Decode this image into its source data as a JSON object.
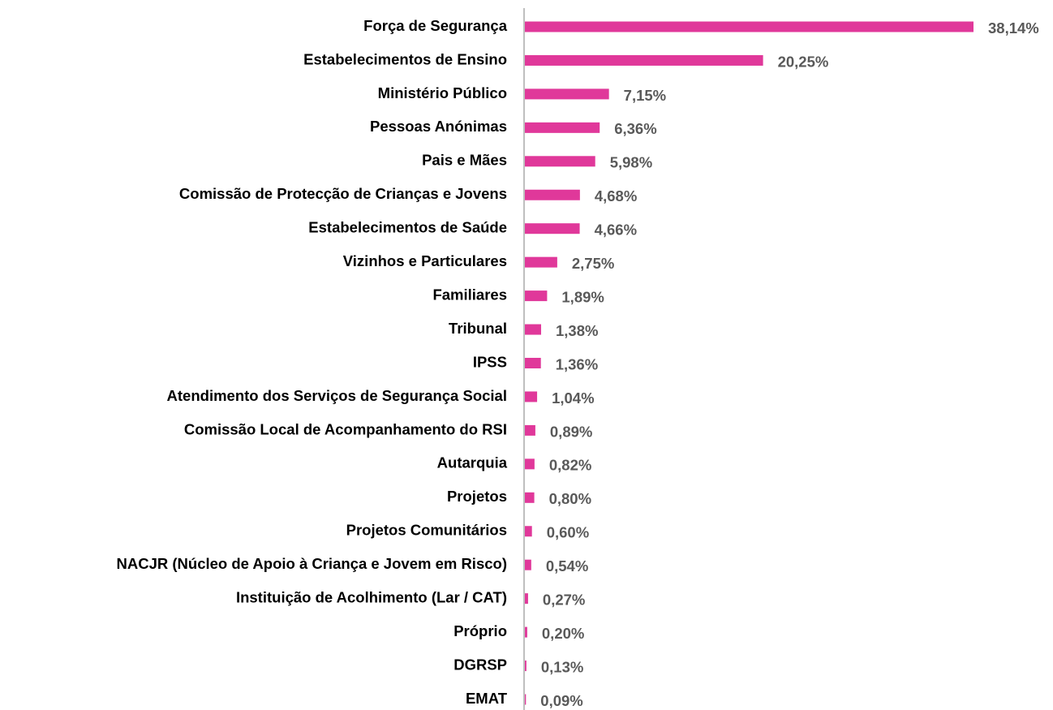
{
  "chart_data": {
    "type": "bar",
    "orientation": "horizontal",
    "color": "#e0389a",
    "categories": [
      "Força de Segurança",
      "Estabelecimentos de Ensino",
      "Ministério Público",
      "Pessoas Anónimas",
      "Pais e Mães",
      "Comissão de Protecção de Crianças e Jovens",
      "Estabelecimentos de Saúde",
      "Vizinhos e Particulares",
      "Familiares",
      "Tribunal",
      "IPSS",
      "Atendimento dos Serviços de Segurança Social",
      "Comissão Local de Acompanhamento do RSI",
      "Autarquia",
      "Projetos",
      "Projetos Comunitários",
      "NACJR (Núcleo de Apoio à Criança e Jovem em Risco)",
      "Instituição de Acolhimento (Lar / CAT)",
      "Próprio",
      "DGRSP",
      "EMAT"
    ],
    "values": [
      38.14,
      20.25,
      7.15,
      6.36,
      5.98,
      4.68,
      4.66,
      2.75,
      1.89,
      1.38,
      1.36,
      1.04,
      0.89,
      0.82,
      0.8,
      0.6,
      0.54,
      0.27,
      0.2,
      0.13,
      0.09
    ],
    "value_labels": [
      "38,14%",
      "20,25%",
      "7,15%",
      "6,36%",
      "5,98%",
      "4,68%",
      "4,66%",
      "2,75%",
      "1,89%",
      "1,38%",
      "1,36%",
      "1,04%",
      "0,89%",
      "0,82%",
      "0,80%",
      "0,60%",
      "0,54%",
      "0,27%",
      "0,20%",
      "0,13%",
      "0,09%"
    ]
  }
}
